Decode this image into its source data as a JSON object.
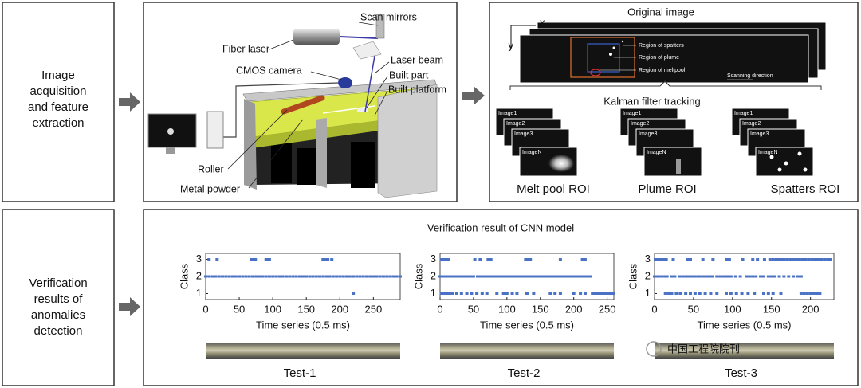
{
  "stages": [
    {
      "lines": [
        "Image",
        "acquisition",
        "and feature",
        "extraction"
      ]
    },
    {
      "lines": [
        "Verification",
        "results of",
        "anomalies",
        "detection"
      ]
    }
  ],
  "setup": {
    "labels": [
      "Scan mirrors",
      "Fiber laser",
      "Laser beam",
      "CMOS camera",
      "Built part",
      "Built platform",
      "Roller",
      "Metal powder"
    ]
  },
  "original": {
    "title": "Original image",
    "axis_x": "x",
    "axis_y": "y",
    "regions": [
      "Region of spatters",
      "Region of plume",
      "Region of meltpool"
    ],
    "direction": "Scanning direction"
  },
  "tracking": {
    "title": "Kalman filter tracking",
    "rois": [
      {
        "name": "Melt pool ROI",
        "frames": [
          "Image1",
          "Image2",
          "Image3",
          "ImageN"
        ]
      },
      {
        "name": "Plume ROI",
        "frames": [
          "Image1",
          "Image2",
          "Image3",
          "ImageN"
        ]
      },
      {
        "name": "Spatters ROI",
        "frames": [
          "Image1",
          "Image2",
          "Image3",
          "ImageN"
        ]
      }
    ]
  },
  "verification": {
    "title": "Verification result of CNN model",
    "watermark": "中国工程院院刊",
    "charts": [
      {
        "type": "scatter",
        "ylabel": "Class",
        "xlabel": "Time series (0.5 ms)",
        "caption": "Test-1",
        "color": "#4a72c4",
        "xlim": [
          0,
          290
        ],
        "ylim": [
          0.65,
          3.35
        ],
        "xticks": [
          0,
          50,
          100,
          150,
          200,
          250
        ],
        "yticks": [
          1,
          2,
          3
        ],
        "series": [
          {
            "value": 3,
            "x": [
              5,
              17,
              68,
              70,
              72,
              74,
              90,
              92,
              95,
              175,
              178,
              182,
              188
            ]
          },
          {
            "value": 2,
            "x": [
              0,
              5,
              10,
              15,
              20,
              25,
              30,
              35,
              40,
              45,
              50,
              55,
              60,
              65,
              70,
              75,
              80,
              85,
              90,
              95,
              100,
              105,
              110,
              115,
              120,
              125,
              130,
              135,
              140,
              145,
              150,
              155,
              160,
              165,
              170,
              175,
              180,
              185,
              190,
              195,
              200,
              205,
              210,
              215,
              220,
              225,
              230,
              235,
              240,
              245,
              250,
              255,
              260,
              265,
              270,
              275,
              280,
              285,
              290
            ]
          },
          {
            "value": 1,
            "x": [
              220
            ]
          }
        ]
      },
      {
        "type": "scatter",
        "ylabel": "Class",
        "xlabel": "Time series (0.5 ms)",
        "caption": "Test-2",
        "color": "#4a72c4",
        "xlim": [
          0,
          260
        ],
        "ylim": [
          0.65,
          3.35
        ],
        "xticks": [
          0,
          50,
          100,
          150,
          200,
          250
        ],
        "yticks": [
          1,
          2,
          3
        ],
        "series": [
          {
            "value": 3,
            "x": [
              2,
              5,
              9,
              13,
              52,
              60,
              72,
              76,
              128,
              131,
              135,
              180,
              213,
              217
            ]
          },
          {
            "value": 2,
            "x": [
              0,
              4,
              8,
              12,
              16,
              20,
              24,
              28,
              32,
              36,
              40,
              44,
              48,
              50,
              56,
              60,
              64,
              66,
              70,
              74,
              78,
              80,
              84,
              88,
              90,
              94,
              98,
              102,
              104,
              108,
              112,
              116,
              120,
              122,
              126,
              130,
              134,
              138,
              140,
              144,
              148,
              152,
              156,
              158,
              162,
              166,
              170,
              174,
              178,
              182,
              186,
              190,
              194,
              198,
              202,
              206,
              210,
              214,
              218,
              222,
              225
            ]
          },
          {
            "value": 1,
            "x": [
              2,
              6,
              10,
              14,
              18,
              25,
              32,
              40,
              47,
              55,
              63,
              70,
              85,
              95,
              100,
              108,
              115,
              130,
              140,
              165,
              172,
              180,
              200,
              210,
              217,
              228,
              231,
              234,
              237,
              240,
              243,
              246,
              249,
              252,
              255,
              258,
              260
            ]
          }
        ]
      },
      {
        "type": "scatter",
        "ylabel": "Class",
        "xlabel": "Time series (0.5 ms)",
        "caption": "Test-3",
        "color": "#4a72c4",
        "xlim": [
          0,
          230
        ],
        "ylim": [
          0.65,
          3.35
        ],
        "xticks": [
          0,
          50,
          100,
          150,
          200
        ],
        "yticks": [
          1,
          2,
          3
        ],
        "series": [
          {
            "value": 3,
            "x": [
              1,
              3,
              5,
              7,
              9,
              11,
              13,
              15,
              24,
              42,
              46,
              62,
              75,
              92,
              96,
              113,
              126,
              132,
              141,
              148,
              152,
              156,
              160,
              164,
              166,
              170,
              174,
              178,
              182,
              186,
              190,
              194,
              198,
              202,
              206,
              210,
              214,
              218,
              222,
              225
            ]
          },
          {
            "value": 2,
            "x": [
              0,
              3,
              6,
              10,
              14,
              16,
              22,
              26,
              32,
              36,
              40,
              42,
              44,
              48,
              52,
              56,
              58,
              62,
              66,
              70,
              72,
              74,
              80,
              84,
              88,
              90,
              94,
              98,
              104,
              110,
              118,
              122,
              126,
              130,
              136,
              140,
              146,
              150,
              154,
              160,
              166,
              172,
              178,
              184,
              188
            ]
          },
          {
            "value": 1,
            "x": [
              14,
              18,
              22,
              28,
              33,
              40,
              46,
              52,
              58,
              65,
              72,
              80,
              92,
              98,
              105,
              112,
              120,
              128,
              140,
              146,
              152,
              162,
              188,
              192,
              196,
              200,
              204,
              208,
              212
            ]
          }
        ]
      }
    ]
  }
}
